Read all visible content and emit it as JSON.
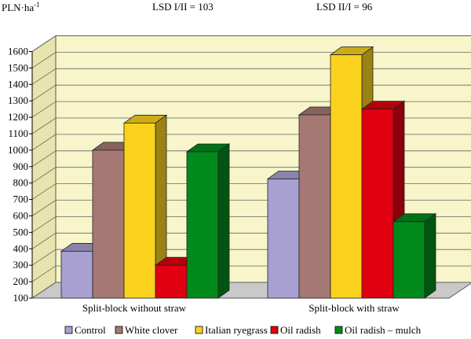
{
  "chart_data": {
    "type": "bar",
    "title": "",
    "ylabel": "PLN·ha",
    "ylabel_superscript": "-1",
    "xlabel": "",
    "ylim": [
      100,
      1600
    ],
    "yticks": [
      100,
      200,
      300,
      400,
      500,
      600,
      700,
      800,
      900,
      1000,
      1100,
      1200,
      1300,
      1400,
      1500,
      1600
    ],
    "grid": true,
    "three_d": true,
    "legend_position": "bottom",
    "annotations": [
      "LSD I/II = 103",
      "LSD II/I = 96"
    ],
    "categories": [
      "Split-block without straw",
      "Split-block with straw"
    ],
    "series": [
      {
        "name": "Control",
        "color": "#a7a0d0",
        "values": [
          385,
          825
        ]
      },
      {
        "name": "White clover",
        "color": "#a67873",
        "values": [
          1000,
          1215
        ]
      },
      {
        "name": "Italian ryegrass",
        "color": "#fad21e",
        "values": [
          1165,
          1580
        ]
      },
      {
        "name": "Oil radish",
        "color": "#e00010",
        "values": [
          300,
          1250
        ]
      },
      {
        "name": "Oil radish – mulch",
        "color": "#008a1c",
        "values": [
          990,
          565
        ]
      }
    ]
  }
}
